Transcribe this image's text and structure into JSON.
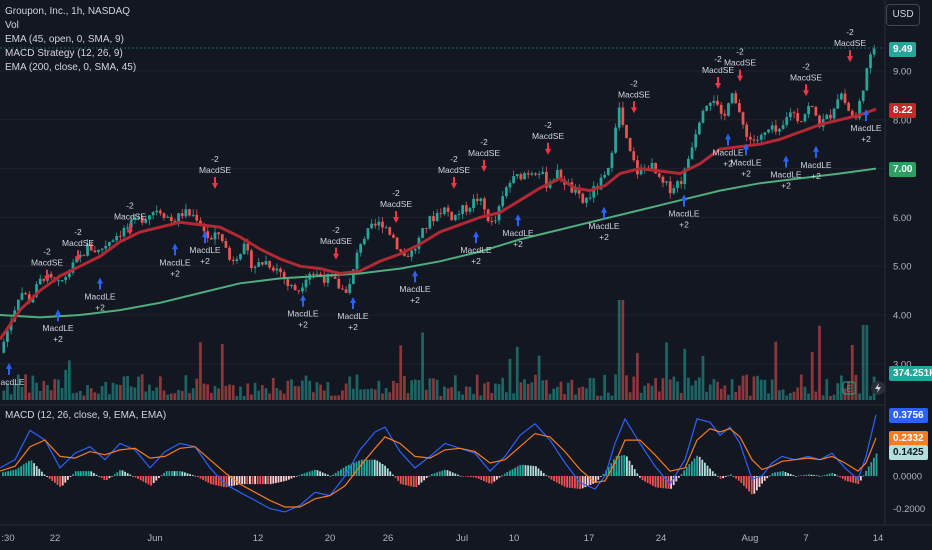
{
  "header": {
    "symbol_line": "Groupon, Inc., 1h, NASDAQ",
    "indicators": [
      "Vol",
      "EMA (45, open, 0, SMA, 9)",
      "MACD Strategy (12, 26, 9)",
      "EMA (200, close, 0, SMA, 45)"
    ],
    "currency_button": "USD",
    "macd_legend": "MACD (12, 26, close, 9, EMA, EMA)"
  },
  "colors": {
    "up": "#26a69a",
    "down": "#ef5350",
    "ema45": "#b22833",
    "ema200": "#4caf7d",
    "macd": "#2962ff",
    "signal": "#f57c20",
    "buy": "#2962ff",
    "sell": "#f23645"
  },
  "tags": {
    "last_price": "9.49",
    "ema45": "8.22",
    "ema200": "7.00",
    "volume": "374.251K",
    "macd": "0.3756",
    "signal": "0.2332",
    "hist": "0.1425"
  },
  "chart_data": {
    "type": "candlestick",
    "price_axis": {
      "ticks": [
        "9.00",
        "8.00",
        "7.00",
        "6.00",
        "5.00",
        "4.00",
        "3.00"
      ],
      "ylim": [
        2.7,
        10.1
      ]
    },
    "macd_axis": {
      "ticks": [
        "0.0000",
        "-0.2000"
      ]
    },
    "x_ticks": [
      ":30",
      "22",
      "Jun",
      "12",
      "20",
      "26",
      "Jul",
      "10",
      "17",
      "24",
      "Aug",
      "7",
      "14"
    ],
    "price_path": [
      [
        0,
        3.1
      ],
      [
        8,
        3.6
      ],
      [
        22,
        4.5
      ],
      [
        32,
        4.3
      ],
      [
        45,
        4.8
      ],
      [
        60,
        4.6
      ],
      [
        75,
        5.0
      ],
      [
        90,
        5.4
      ],
      [
        100,
        5.3
      ],
      [
        115,
        5.6
      ],
      [
        130,
        5.8
      ],
      [
        145,
        6.0
      ],
      [
        160,
        6.2
      ],
      [
        175,
        5.9
      ],
      [
        185,
        6.1
      ],
      [
        200,
        6.0
      ],
      [
        212,
        5.5
      ],
      [
        222,
        5.7
      ],
      [
        232,
        5.1
      ],
      [
        245,
        5.4
      ],
      [
        255,
        5.0
      ],
      [
        268,
        5.1
      ],
      [
        282,
        4.9
      ],
      [
        290,
        4.6
      ],
      [
        300,
        4.5
      ],
      [
        310,
        4.9
      ],
      [
        322,
        4.8
      ],
      [
        335,
        4.7
      ],
      [
        345,
        4.5
      ],
      [
        352,
        4.6
      ],
      [
        362,
        5.5
      ],
      [
        375,
        5.8
      ],
      [
        385,
        5.9
      ],
      [
        395,
        5.6
      ],
      [
        405,
        5.2
      ],
      [
        415,
        5.3
      ],
      [
        430,
        5.9
      ],
      [
        445,
        6.2
      ],
      [
        455,
        6.0
      ],
      [
        468,
        6.2
      ],
      [
        480,
        6.4
      ],
      [
        495,
        5.8
      ],
      [
        510,
        6.7
      ],
      [
        525,
        6.9
      ],
      [
        540,
        7.0
      ],
      [
        548,
        6.7
      ],
      [
        560,
        6.9
      ],
      [
        572,
        6.6
      ],
      [
        585,
        6.3
      ],
      [
        598,
        6.6
      ],
      [
        610,
        6.9
      ],
      [
        620,
        8.3
      ],
      [
        630,
        7.4
      ],
      [
        640,
        6.9
      ],
      [
        652,
        7.1
      ],
      [
        662,
        6.7
      ],
      [
        672,
        6.6
      ],
      [
        685,
        6.8
      ],
      [
        695,
        7.6
      ],
      [
        705,
        8.3
      ],
      [
        715,
        8.5
      ],
      [
        725,
        7.9
      ],
      [
        733,
        8.7
      ],
      [
        742,
        8.0
      ],
      [
        752,
        7.6
      ],
      [
        762,
        7.6
      ],
      [
        772,
        7.8
      ],
      [
        782,
        7.7
      ],
      [
        792,
        8.2
      ],
      [
        802,
        8.0
      ],
      [
        812,
        8.3
      ],
      [
        822,
        7.9
      ],
      [
        832,
        8.1
      ],
      [
        842,
        8.6
      ],
      [
        850,
        8.2
      ],
      [
        858,
        8.0
      ],
      [
        866,
        8.8
      ],
      [
        876,
        9.5
      ]
    ],
    "ema45_path": [
      [
        0,
        3.5
      ],
      [
        20,
        4.1
      ],
      [
        40,
        4.5
      ],
      [
        60,
        4.8
      ],
      [
        80,
        5.0
      ],
      [
        100,
        5.2
      ],
      [
        120,
        5.5
      ],
      [
        140,
        5.7
      ],
      [
        160,
        5.8
      ],
      [
        180,
        5.9
      ],
      [
        200,
        5.85
      ],
      [
        220,
        5.8
      ],
      [
        240,
        5.6
      ],
      [
        260,
        5.35
      ],
      [
        280,
        5.15
      ],
      [
        300,
        5.0
      ],
      [
        320,
        4.95
      ],
      [
        340,
        4.85
      ],
      [
        360,
        4.9
      ],
      [
        380,
        5.1
      ],
      [
        400,
        5.25
      ],
      [
        420,
        5.45
      ],
      [
        440,
        5.7
      ],
      [
        460,
        5.85
      ],
      [
        480,
        6.0
      ],
      [
        500,
        6.1
      ],
      [
        520,
        6.35
      ],
      [
        540,
        6.6
      ],
      [
        560,
        6.8
      ],
      [
        575,
        6.6
      ],
      [
        590,
        6.55
      ],
      [
        605,
        6.65
      ],
      [
        620,
        6.9
      ],
      [
        640,
        7.0
      ],
      [
        660,
        6.95
      ],
      [
        680,
        6.9
      ],
      [
        700,
        7.1
      ],
      [
        720,
        7.4
      ],
      [
        740,
        7.45
      ],
      [
        760,
        7.5
      ],
      [
        780,
        7.6
      ],
      [
        800,
        7.75
      ],
      [
        820,
        7.9
      ],
      [
        840,
        8.0
      ],
      [
        860,
        8.1
      ],
      [
        876,
        8.22
      ]
    ],
    "ema200_path": [
      [
        0,
        4.0
      ],
      [
        40,
        3.95
      ],
      [
        80,
        4.0
      ],
      [
        120,
        4.1
      ],
      [
        160,
        4.25
      ],
      [
        200,
        4.45
      ],
      [
        240,
        4.65
      ],
      [
        280,
        4.75
      ],
      [
        320,
        4.8
      ],
      [
        360,
        4.85
      ],
      [
        400,
        4.95
      ],
      [
        440,
        5.1
      ],
      [
        480,
        5.3
      ],
      [
        520,
        5.55
      ],
      [
        560,
        5.75
      ],
      [
        600,
        5.95
      ],
      [
        640,
        6.15
      ],
      [
        680,
        6.35
      ],
      [
        720,
        6.55
      ],
      [
        760,
        6.7
      ],
      [
        800,
        6.8
      ],
      [
        840,
        6.9
      ],
      [
        876,
        7.0
      ]
    ],
    "signals": [
      {
        "type": "buy",
        "x": 9,
        "y": 3.1,
        "label": "MacdLE"
      },
      {
        "type": "sell",
        "x": 47,
        "y": 4.6,
        "label": "MacdSE",
        "delta": "-2"
      },
      {
        "type": "buy",
        "x": 58,
        "y": 4.2,
        "label": "MacdLE",
        "delta": "+2"
      },
      {
        "type": "sell",
        "x": 78,
        "y": 5.0,
        "label": "MacdSE",
        "delta": "-2"
      },
      {
        "type": "buy",
        "x": 100,
        "y": 4.85,
        "label": "MacdLE",
        "delta": "+2"
      },
      {
        "type": "sell",
        "x": 130,
        "y": 5.55,
        "label": "MacdSE",
        "delta": "-2"
      },
      {
        "type": "buy",
        "x": 175,
        "y": 5.55,
        "label": "MacdLE",
        "delta": "+2"
      },
      {
        "type": "sell",
        "x": 215,
        "y": 6.5,
        "label": "MacdSE",
        "delta": "-2"
      },
      {
        "type": "buy",
        "x": 205,
        "y": 5.8,
        "label": "MacdLE",
        "delta": "+2"
      },
      {
        "type": "buy",
        "x": 303,
        "y": 4.5,
        "label": "MacdLE",
        "delta": "+2"
      },
      {
        "type": "sell",
        "x": 336,
        "y": 5.05,
        "label": "MacdSE",
        "delta": "-2"
      },
      {
        "type": "buy",
        "x": 353,
        "y": 4.45,
        "label": "MacdLE",
        "delta": "+2"
      },
      {
        "type": "sell",
        "x": 396,
        "y": 5.8,
        "label": "MacdSE",
        "delta": "-2"
      },
      {
        "type": "buy",
        "x": 415,
        "y": 5.0,
        "label": "MacdLE",
        "delta": "+2"
      },
      {
        "type": "sell",
        "x": 454,
        "y": 6.5,
        "label": "MacdSE",
        "delta": "-2"
      },
      {
        "type": "buy",
        "x": 476,
        "y": 5.8,
        "label": "MacdLE",
        "delta": "+2"
      },
      {
        "type": "sell",
        "x": 484,
        "y": 6.85,
        "label": "MacdSE",
        "delta": "-2"
      },
      {
        "type": "buy",
        "x": 518,
        "y": 6.15,
        "label": "MacdLE",
        "delta": "+2"
      },
      {
        "type": "sell",
        "x": 548,
        "y": 7.2,
        "label": "MacdSE",
        "delta": "-2"
      },
      {
        "type": "buy",
        "x": 604,
        "y": 6.3,
        "label": "MacdLE",
        "delta": "+2"
      },
      {
        "type": "sell",
        "x": 634,
        "y": 8.05,
        "label": "MacdSE",
        "delta": "-2"
      },
      {
        "type": "buy",
        "x": 684,
        "y": 6.55,
        "label": "MacdLE",
        "delta": "+2"
      },
      {
        "type": "sell",
        "x": 718,
        "y": 8.55,
        "label": "MacdSE",
        "delta": "-2"
      },
      {
        "type": "sell",
        "x": 740,
        "y": 8.7,
        "label": "MacdSE",
        "delta": "-2"
      },
      {
        "type": "buy",
        "x": 728,
        "y": 7.8,
        "label": "MacdLE",
        "delta": "+2"
      },
      {
        "type": "buy",
        "x": 746,
        "y": 7.6,
        "label": "MacdLE",
        "delta": "+2"
      },
      {
        "type": "buy",
        "x": 786,
        "y": 7.35,
        "label": "MacdLE",
        "delta": "+2"
      },
      {
        "type": "sell",
        "x": 806,
        "y": 8.4,
        "label": "MacdSE",
        "delta": "-2"
      },
      {
        "type": "buy",
        "x": 816,
        "y": 7.55,
        "label": "MacdLE",
        "delta": "+2"
      },
      {
        "type": "sell",
        "x": 850,
        "y": 9.1,
        "label": "MacdSE",
        "delta": "-2"
      },
      {
        "type": "buy",
        "x": 866,
        "y": 8.3,
        "label": "MacdLE",
        "delta": "+2"
      }
    ],
    "macd_path": [
      [
        0,
        0.05
      ],
      [
        15,
        0.1
      ],
      [
        30,
        0.28
      ],
      [
        45,
        0.22
      ],
      [
        60,
        0.05
      ],
      [
        75,
        0.14
      ],
      [
        90,
        0.18
      ],
      [
        105,
        0.1
      ],
      [
        120,
        0.2
      ],
      [
        135,
        0.16
      ],
      [
        150,
        0.05
      ],
      [
        165,
        0.15
      ],
      [
        180,
        0.2
      ],
      [
        195,
        0.18
      ],
      [
        210,
        0.05
      ],
      [
        225,
        -0.05
      ],
      [
        240,
        -0.1
      ],
      [
        255,
        -0.15
      ],
      [
        270,
        -0.2
      ],
      [
        285,
        -0.22
      ],
      [
        300,
        -0.18
      ],
      [
        315,
        -0.1
      ],
      [
        330,
        -0.12
      ],
      [
        345,
        0.0
      ],
      [
        360,
        0.16
      ],
      [
        375,
        0.27
      ],
      [
        385,
        0.3
      ],
      [
        400,
        0.15
      ],
      [
        415,
        0.05
      ],
      [
        430,
        0.12
      ],
      [
        445,
        0.2
      ],
      [
        460,
        0.17
      ],
      [
        475,
        0.14
      ],
      [
        490,
        0.03
      ],
      [
        505,
        0.12
      ],
      [
        520,
        0.25
      ],
      [
        535,
        0.32
      ],
      [
        550,
        0.22
      ],
      [
        565,
        0.08
      ],
      [
        580,
        -0.04
      ],
      [
        595,
        -0.08
      ],
      [
        605,
        0.0
      ],
      [
        615,
        0.2
      ],
      [
        625,
        0.35
      ],
      [
        640,
        0.2
      ],
      [
        655,
        0.06
      ],
      [
        670,
        -0.05
      ],
      [
        685,
        0.1
      ],
      [
        697,
        0.35
      ],
      [
        710,
        0.33
      ],
      [
        720,
        0.25
      ],
      [
        730,
        0.3
      ],
      [
        740,
        0.2
      ],
      [
        752,
        -0.02
      ],
      [
        762,
        0.0
      ],
      [
        772,
        0.08
      ],
      [
        782,
        0.12
      ],
      [
        795,
        0.1
      ],
      [
        808,
        0.12
      ],
      [
        820,
        0.1
      ],
      [
        832,
        0.14
      ],
      [
        845,
        0.05
      ],
      [
        858,
        -0.02
      ],
      [
        866,
        0.12
      ],
      [
        876,
        0.3756
      ]
    ],
    "signal_path": [
      [
        0,
        0.03
      ],
      [
        15,
        0.06
      ],
      [
        30,
        0.18
      ],
      [
        45,
        0.22
      ],
      [
        60,
        0.12
      ],
      [
        75,
        0.11
      ],
      [
        90,
        0.15
      ],
      [
        105,
        0.13
      ],
      [
        120,
        0.16
      ],
      [
        135,
        0.17
      ],
      [
        150,
        0.11
      ],
      [
        165,
        0.12
      ],
      [
        180,
        0.17
      ],
      [
        195,
        0.18
      ],
      [
        210,
        0.1
      ],
      [
        225,
        0.02
      ],
      [
        240,
        -0.05
      ],
      [
        255,
        -0.1
      ],
      [
        270,
        -0.15
      ],
      [
        285,
        -0.19
      ],
      [
        300,
        -0.19
      ],
      [
        315,
        -0.14
      ],
      [
        330,
        -0.12
      ],
      [
        345,
        -0.06
      ],
      [
        360,
        0.06
      ],
      [
        375,
        0.17
      ],
      [
        385,
        0.24
      ],
      [
        400,
        0.2
      ],
      [
        415,
        0.12
      ],
      [
        430,
        0.11
      ],
      [
        445,
        0.16
      ],
      [
        460,
        0.17
      ],
      [
        475,
        0.15
      ],
      [
        490,
        0.08
      ],
      [
        505,
        0.1
      ],
      [
        520,
        0.18
      ],
      [
        535,
        0.26
      ],
      [
        550,
        0.24
      ],
      [
        565,
        0.15
      ],
      [
        580,
        0.04
      ],
      [
        595,
        -0.04
      ],
      [
        605,
        -0.03
      ],
      [
        615,
        0.08
      ],
      [
        625,
        0.22
      ],
      [
        640,
        0.22
      ],
      [
        655,
        0.13
      ],
      [
        670,
        0.03
      ],
      [
        685,
        0.05
      ],
      [
        697,
        0.22
      ],
      [
        710,
        0.29
      ],
      [
        720,
        0.27
      ],
      [
        730,
        0.29
      ],
      [
        740,
        0.24
      ],
      [
        752,
        0.1
      ],
      [
        762,
        0.04
      ],
      [
        772,
        0.06
      ],
      [
        782,
        0.09
      ],
      [
        795,
        0.1
      ],
      [
        808,
        0.11
      ],
      [
        820,
        0.1
      ],
      [
        832,
        0.12
      ],
      [
        845,
        0.08
      ],
      [
        858,
        0.03
      ],
      [
        866,
        0.08
      ],
      [
        876,
        0.2332
      ]
    ]
  }
}
